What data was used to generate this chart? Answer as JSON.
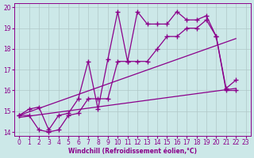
{
  "xlabel": "Windchill (Refroidissement éolien,°C)",
  "bg_color": "#cce8e8",
  "line_color": "#8b008b",
  "grid_color": "#b0c8c8",
  "xlim": [
    -0.5,
    23.5
  ],
  "ylim": [
    13.8,
    20.2
  ],
  "xticks": [
    0,
    1,
    2,
    3,
    4,
    5,
    6,
    7,
    8,
    9,
    10,
    11,
    12,
    13,
    14,
    15,
    16,
    17,
    18,
    19,
    20,
    21,
    22,
    23
  ],
  "yticks": [
    14,
    15,
    16,
    17,
    18,
    19,
    20
  ],
  "series1_x": [
    0,
    1,
    2,
    3,
    4,
    5,
    6,
    7,
    8,
    9,
    10,
    11,
    12,
    13,
    14,
    15,
    16,
    17,
    18,
    19,
    20,
    21,
    22
  ],
  "series1_y": [
    14.8,
    15.1,
    15.2,
    14.1,
    14.8,
    14.9,
    15.6,
    17.4,
    15.1,
    17.5,
    19.8,
    17.4,
    19.8,
    19.2,
    19.2,
    19.2,
    19.8,
    19.4,
    19.4,
    19.6,
    18.6,
    16.1,
    16.5
  ],
  "series2_x": [
    0,
    1,
    2,
    3,
    4,
    5,
    6,
    7,
    8,
    9,
    10,
    11,
    12,
    13,
    14,
    15,
    16,
    17,
    18,
    19,
    20,
    21,
    22
  ],
  "series2_y": [
    14.8,
    14.8,
    14.1,
    14.0,
    14.1,
    14.8,
    14.9,
    15.6,
    15.6,
    15.6,
    17.4,
    17.4,
    17.4,
    17.4,
    18.0,
    18.6,
    18.6,
    19.0,
    19.0,
    19.4,
    18.6,
    16.0,
    16.0
  ],
  "line3_x": [
    0,
    22
  ],
  "line3_y": [
    14.8,
    18.5
  ],
  "line4_x": [
    0,
    22
  ],
  "line4_y": [
    14.7,
    16.1
  ],
  "marker": "+",
  "markersize": 4,
  "linewidth": 0.9,
  "figsize": [
    3.2,
    2.0
  ],
  "dpi": 100
}
